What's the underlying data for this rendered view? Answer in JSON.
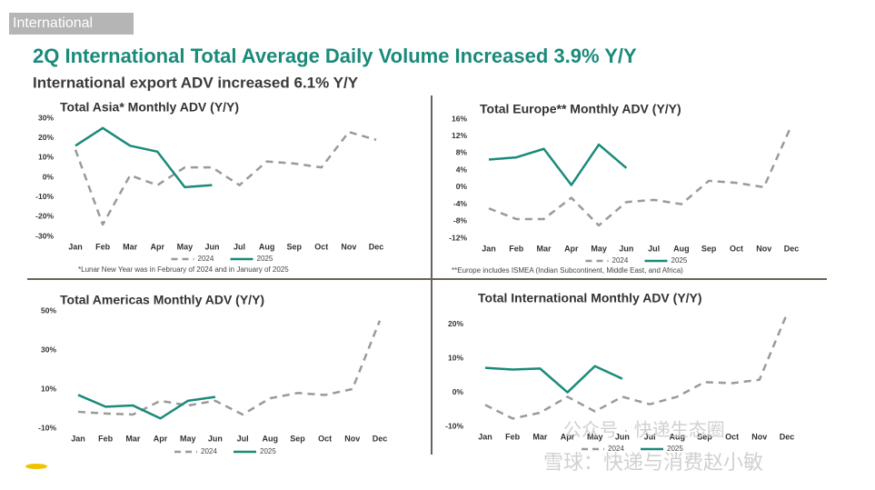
{
  "header": {
    "tag": "International",
    "title": "2Q International Total Average Daily Volume Increased 3.9% Y/Y",
    "subtitle": "International export ADV increased 6.1% Y/Y"
  },
  "watermark": [
    "公众号 · 快递生态圈",
    "雪球：快递与消费赵小敏"
  ],
  "chart_data": [
    {
      "type": "line",
      "title": "Total Asia* Monthly ADV (Y/Y)",
      "footnote": "*Lunar New Year was in February of 2024 and in January of 2025",
      "legend": "bottom",
      "categories": [
        "Jan",
        "Feb",
        "Mar",
        "Apr",
        "May",
        "Jun",
        "Jul",
        "Aug",
        "Sep",
        "Oct",
        "Nov",
        "Dec"
      ],
      "series": [
        {
          "name": "2024",
          "color": "#9a9a9a",
          "dashed": true,
          "values": [
            14,
            -24,
            1,
            -4,
            5,
            5,
            -4,
            8,
            7,
            5,
            23,
            19
          ]
        },
        {
          "name": "2025",
          "color": "#1a8a7a",
          "dashed": false,
          "values": [
            16,
            25,
            16,
            13,
            -5,
            -4,
            null,
            null,
            null,
            null,
            null,
            null
          ]
        }
      ],
      "ylim": [
        -30,
        30
      ],
      "yticks": [
        {
          "value": -30,
          "label": "-30%"
        },
        {
          "value": -20,
          "label": "-20%"
        },
        {
          "value": -10,
          "label": "-10%"
        },
        {
          "value": 0,
          "label": "0%"
        },
        {
          "value": 10,
          "label": "10%"
        },
        {
          "value": 20,
          "label": "20%"
        },
        {
          "value": 30,
          "label": "30%"
        }
      ],
      "grid": false
    },
    {
      "type": "line",
      "title": "Total Europe** Monthly ADV (Y/Y)",
      "footnote": "**Europe includes ISMEA (Indian Subcontinent, Middle East, and Africa)",
      "legend": "bottom",
      "categories": [
        "Jan",
        "Feb",
        "Mar",
        "Apr",
        "May",
        "Jun",
        "Jul",
        "Aug",
        "Sep",
        "Oct",
        "Nov",
        "Dec"
      ],
      "series": [
        {
          "name": "2024",
          "color": "#9a9a9a",
          "dashed": true,
          "values": [
            -5,
            -7.5,
            -7.5,
            -2.5,
            -9,
            -3.5,
            -3,
            -4,
            1.5,
            1,
            0,
            14.5
          ]
        },
        {
          "name": "2025",
          "color": "#1a8a7a",
          "dashed": false,
          "values": [
            6.5,
            7,
            9,
            0.5,
            10,
            4.5,
            null,
            null,
            null,
            null,
            null,
            null
          ]
        }
      ],
      "ylim": [
        -12,
        16
      ],
      "yticks": [
        {
          "value": -12,
          "label": "-12%"
        },
        {
          "value": -8,
          "label": "-8%"
        },
        {
          "value": -4,
          "label": "-4%"
        },
        {
          "value": 0,
          "label": "0%"
        },
        {
          "value": 4,
          "label": "4%"
        },
        {
          "value": 8,
          "label": "8%"
        },
        {
          "value": 12,
          "label": "12%"
        },
        {
          "value": 16,
          "label": "16%"
        }
      ],
      "grid": false
    },
    {
      "type": "line",
      "title": "Total Americas Monthly ADV (Y/Y)",
      "legend": "bottom",
      "categories": [
        "Jan",
        "Feb",
        "Mar",
        "Apr",
        "May",
        "Jun",
        "Jul",
        "Aug",
        "Sep",
        "Oct",
        "Nov",
        "Dec"
      ],
      "series": [
        {
          "name": "2024",
          "color": "#9a9a9a",
          "dashed": true,
          "values": [
            -1.6,
            -2.5,
            -3,
            4,
            1.6,
            4,
            -3,
            5.3,
            8,
            7,
            10,
            45
          ]
        },
        {
          "name": "2025",
          "color": "#1a8a7a",
          "dashed": false,
          "values": [
            7,
            1,
            1.6,
            -5,
            4,
            6,
            null,
            null,
            null,
            null,
            null,
            null
          ]
        }
      ],
      "ylim": [
        -10,
        50
      ],
      "yticks": [
        {
          "value": -10,
          "label": "-10%"
        },
        {
          "value": 10,
          "label": "10%"
        },
        {
          "value": 30,
          "label": "30%"
        },
        {
          "value": 50,
          "label": "50%"
        }
      ],
      "grid": false
    },
    {
      "type": "line",
      "title": "Total International Monthly ADV (Y/Y)",
      "legend": "bottom",
      "categories": [
        "Jan",
        "Feb",
        "Mar",
        "Apr",
        "May",
        "Jun",
        "Jul",
        "Aug",
        "Sep",
        "Oct",
        "Nov",
        "Dec"
      ],
      "series": [
        {
          "name": "2024",
          "color": "#9a9a9a",
          "dashed": true,
          "values": [
            -3.7,
            -7.7,
            -6,
            -1.3,
            -5.6,
            -1.3,
            -3.5,
            -1.3,
            3,
            2.7,
            3.7,
            23
          ]
        },
        {
          "name": "2025",
          "color": "#1a8a7a",
          "dashed": false,
          "values": [
            7.2,
            6.7,
            7,
            0,
            7.7,
            4,
            null,
            null,
            null,
            null,
            null,
            null
          ]
        }
      ],
      "ylim": [
        -10,
        25
      ],
      "yticks": [
        {
          "value": -10,
          "label": "-10%"
        },
        {
          "value": 0,
          "label": "0%"
        },
        {
          "value": 10,
          "label": "10%"
        },
        {
          "value": 20,
          "label": "20%"
        }
      ],
      "grid": false
    }
  ]
}
